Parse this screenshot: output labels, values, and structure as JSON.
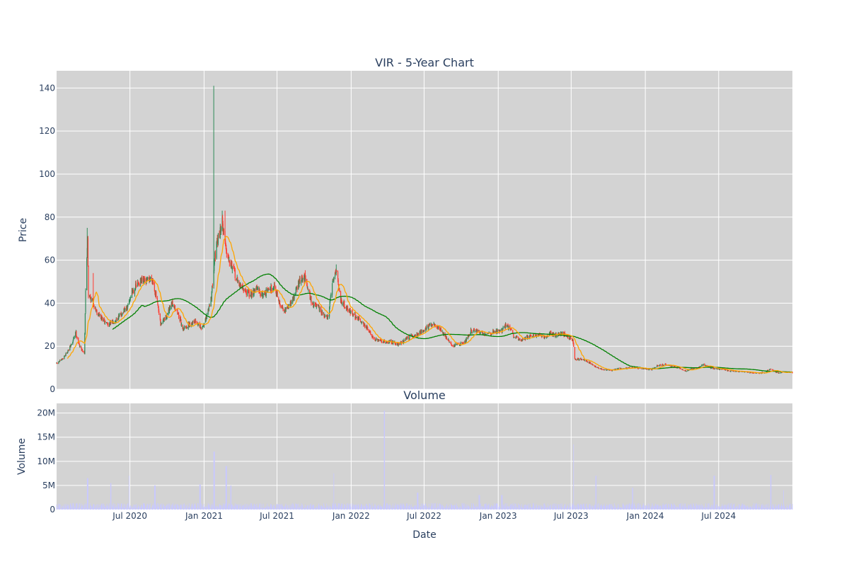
{
  "chart_data": [
    {
      "type": "candlestick",
      "title": "VIR - 5-Year Chart",
      "ylabel": "Price",
      "ylim": [
        0,
        148
      ],
      "yticks": [
        0,
        20,
        40,
        60,
        80,
        100,
        120,
        140
      ],
      "grid": true,
      "x_range": [
        "2020-01-01",
        "2024-12-31"
      ],
      "colors": {
        "up": "#2e8b57",
        "down": "#ff3b30",
        "ma_short": "#ffa500",
        "ma_long": "#008000",
        "plot_bg": "#d3d3d3",
        "grid": "#ffffff"
      },
      "price_keypoints": [
        [
          "2020-01-02",
          12
        ],
        [
          "2020-01-15",
          14
        ],
        [
          "2020-01-30",
          18
        ],
        [
          "2020-02-10",
          22
        ],
        [
          "2020-02-17",
          27
        ],
        [
          "2020-02-25",
          21
        ],
        [
          "2020-03-05",
          18
        ],
        [
          "2020-03-10",
          17
        ],
        [
          "2020-03-13",
          45
        ],
        [
          "2020-03-18",
          72
        ],
        [
          "2020-03-20",
          44
        ],
        [
          "2020-04-01",
          40
        ],
        [
          "2020-04-10",
          36
        ],
        [
          "2020-04-25",
          32
        ],
        [
          "2020-05-10",
          30
        ],
        [
          "2020-05-25",
          32
        ],
        [
          "2020-06-10",
          35
        ],
        [
          "2020-06-25",
          38
        ],
        [
          "2020-07-05",
          45
        ],
        [
          "2020-07-25",
          50
        ],
        [
          "2020-08-10",
          50
        ],
        [
          "2020-08-25",
          52
        ],
        [
          "2020-09-05",
          42
        ],
        [
          "2020-09-15",
          30
        ],
        [
          "2020-09-30",
          34
        ],
        [
          "2020-10-15",
          40
        ],
        [
          "2020-10-25",
          37
        ],
        [
          "2020-11-10",
          28
        ],
        [
          "2020-11-25",
          30
        ],
        [
          "2020-12-10",
          32
        ],
        [
          "2020-12-25",
          28
        ],
        [
          "2021-01-05",
          32
        ],
        [
          "2021-01-20",
          44
        ],
        [
          "2021-01-26",
          60
        ],
        [
          "2021-02-05",
          70
        ],
        [
          "2021-02-15",
          78
        ],
        [
          "2021-02-25",
          65
        ],
        [
          "2021-03-10",
          58
        ],
        [
          "2021-03-25",
          50
        ],
        [
          "2021-04-10",
          46
        ],
        [
          "2021-04-25",
          44
        ],
        [
          "2021-05-10",
          47
        ],
        [
          "2021-05-25",
          44
        ],
        [
          "2021-06-10",
          46
        ],
        [
          "2021-06-25",
          48
        ],
        [
          "2021-07-10",
          38
        ],
        [
          "2021-07-25",
          37
        ],
        [
          "2021-08-10",
          42
        ],
        [
          "2021-08-25",
          50
        ],
        [
          "2021-09-10",
          52
        ],
        [
          "2021-09-25",
          40
        ],
        [
          "2021-10-10",
          38
        ],
        [
          "2021-10-25",
          34
        ],
        [
          "2021-11-05",
          33
        ],
        [
          "2021-11-15",
          50
        ],
        [
          "2021-11-25",
          56
        ],
        [
          "2021-12-05",
          42
        ],
        [
          "2021-12-20",
          38
        ],
        [
          "2022-01-10",
          34
        ],
        [
          "2022-01-25",
          32
        ],
        [
          "2022-02-10",
          28
        ],
        [
          "2022-03-01",
          23
        ],
        [
          "2022-03-20",
          22
        ],
        [
          "2022-04-10",
          22
        ],
        [
          "2022-05-01",
          21
        ],
        [
          "2022-05-20",
          24
        ],
        [
          "2022-06-10",
          25
        ],
        [
          "2022-06-25",
          27
        ],
        [
          "2022-07-10",
          29
        ],
        [
          "2022-07-25",
          30
        ],
        [
          "2022-08-10",
          28
        ],
        [
          "2022-08-25",
          24
        ],
        [
          "2022-09-10",
          20
        ],
        [
          "2022-09-25",
          21
        ],
        [
          "2022-10-10",
          22
        ],
        [
          "2022-10-25",
          27
        ],
        [
          "2022-11-10",
          27
        ],
        [
          "2022-11-25",
          26
        ],
        [
          "2022-12-10",
          26
        ],
        [
          "2022-12-25",
          27
        ],
        [
          "2023-01-10",
          27
        ],
        [
          "2023-01-20",
          30
        ],
        [
          "2023-02-01",
          28
        ],
        [
          "2023-02-10",
          24
        ],
        [
          "2023-03-01",
          23
        ],
        [
          "2023-03-20",
          25
        ],
        [
          "2023-04-10",
          25
        ],
        [
          "2023-04-25",
          24
        ],
        [
          "2023-05-10",
          26
        ],
        [
          "2023-05-25",
          25
        ],
        [
          "2023-06-10",
          26
        ],
        [
          "2023-06-25",
          24
        ],
        [
          "2023-07-05",
          23
        ],
        [
          "2023-07-10",
          14
        ],
        [
          "2023-07-25",
          14
        ],
        [
          "2023-08-10",
          13
        ],
        [
          "2023-08-25",
          11
        ],
        [
          "2023-09-10",
          9.5
        ],
        [
          "2023-09-25",
          9
        ],
        [
          "2023-10-10",
          8.7
        ],
        [
          "2023-10-25",
          9.5
        ],
        [
          "2023-11-10",
          9.8
        ],
        [
          "2023-11-25",
          10
        ],
        [
          "2023-12-10",
          10
        ],
        [
          "2024-01-01",
          9.5
        ],
        [
          "2024-01-15",
          9
        ],
        [
          "2024-02-01",
          11
        ],
        [
          "2024-02-20",
          11.5
        ],
        [
          "2024-03-10",
          10.5
        ],
        [
          "2024-03-25",
          10
        ],
        [
          "2024-04-10",
          8.5
        ],
        [
          "2024-04-25",
          9.5
        ],
        [
          "2024-05-10",
          10
        ],
        [
          "2024-05-25",
          11.5
        ],
        [
          "2024-06-10",
          10
        ],
        [
          "2024-06-25",
          9.5
        ],
        [
          "2024-07-10",
          9.5
        ],
        [
          "2024-07-25",
          8.5
        ],
        [
          "2024-08-10",
          8.5
        ],
        [
          "2024-08-25",
          8.2
        ],
        [
          "2024-09-10",
          7.9
        ],
        [
          "2024-09-25",
          7.7
        ],
        [
          "2024-10-10",
          7.6
        ],
        [
          "2024-10-25",
          7.8
        ],
        [
          "2024-11-05",
          9.5
        ],
        [
          "2024-11-15",
          8.5
        ],
        [
          "2024-11-25",
          7.5
        ],
        [
          "2024-12-10",
          8
        ],
        [
          "2024-12-31",
          7.8
        ]
      ],
      "spike_highs": [
        [
          "2020-03-18",
          75
        ],
        [
          "2020-04-02",
          54
        ],
        [
          "2021-01-26",
          141
        ],
        [
          "2021-02-15",
          83
        ],
        [
          "2021-02-22",
          83
        ],
        [
          "2021-11-26",
          58
        ]
      ]
    },
    {
      "type": "bar",
      "title": "Volume",
      "xlabel": "Date",
      "ylabel": "Volume",
      "ylim": [
        0,
        22000000
      ],
      "yticks": [
        0,
        5000000,
        10000000,
        15000000,
        20000000
      ],
      "ytick_labels": [
        "0",
        "5M",
        "10M",
        "15M",
        "20M"
      ],
      "xticks": [
        "2020-07-01",
        "2021-01-01",
        "2021-07-01",
        "2022-01-01",
        "2022-07-01",
        "2023-01-01",
        "2023-07-01",
        "2024-01-01",
        "2024-07-01"
      ],
      "xtick_labels": [
        "Jul 2020",
        "Jan 2021",
        "Jul 2021",
        "Jan 2022",
        "Jul 2022",
        "Jan 2023",
        "Jul 2023",
        "Jan 2024",
        "Jul 2024"
      ],
      "bar_color": "#c8c8ff",
      "base_volume": 800000,
      "volume_spikes": [
        [
          "2020-03-18",
          6500000
        ],
        [
          "2020-05-15",
          5500000
        ],
        [
          "2020-06-28",
          7000000
        ],
        [
          "2020-09-01",
          5000000
        ],
        [
          "2020-12-22",
          5200000
        ],
        [
          "2021-01-26",
          12000000
        ],
        [
          "2021-02-25",
          9000000
        ],
        [
          "2021-03-08",
          5000000
        ],
        [
          "2021-11-20",
          7500000
        ],
        [
          "2022-03-25",
          20500000
        ],
        [
          "2022-06-15",
          3500000
        ],
        [
          "2022-11-15",
          3000000
        ],
        [
          "2023-01-10",
          3000000
        ],
        [
          "2023-07-08",
          13500000
        ],
        [
          "2023-09-01",
          7000000
        ],
        [
          "2023-12-01",
          4500000
        ],
        [
          "2024-06-20",
          7000000
        ],
        [
          "2024-11-08",
          7200000
        ],
        [
          "2024-12-08",
          4000000
        ]
      ]
    }
  ]
}
